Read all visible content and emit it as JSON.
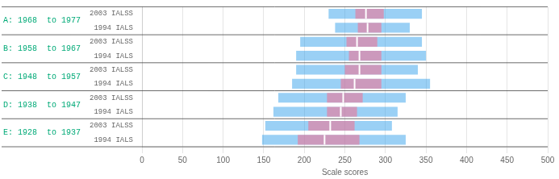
{
  "chart_data": {
    "type": "bar",
    "orientation": "horizontal",
    "xlabel": "Scale scores",
    "groups": [
      {
        "label": "A: 1968  to 1977",
        "color": "#00aa77"
      },
      {
        "label": "B: 1958  to 1967",
        "color": "#00aa77"
      },
      {
        "label": "C: 1948  to 1957",
        "color": "#00aa77"
      },
      {
        "label": "D: 1938  to 1947",
        "color": "#00aa77"
      },
      {
        "label": "E: 1928  to 1937",
        "color": "#00aa77"
      }
    ],
    "categories": [
      "2003 IALSS",
      "1994 IALS",
      "2003 IALSS",
      "1994 IALS",
      "2003 IALSS",
      "1994 IALS",
      "2003 IALSS",
      "1994 IALS",
      "2003 IALSS",
      "1994 IALS"
    ],
    "ci_low": [
      230,
      238,
      195,
      190,
      190,
      185,
      168,
      162,
      152,
      148
    ],
    "ci_high": [
      345,
      330,
      345,
      350,
      340,
      355,
      325,
      315,
      308,
      325
    ],
    "q1": [
      263,
      266,
      252,
      255,
      250,
      245,
      228,
      228,
      205,
      192
    ],
    "q3": [
      298,
      295,
      290,
      295,
      295,
      295,
      272,
      265,
      262,
      268
    ],
    "median": [
      276,
      278,
      265,
      268,
      268,
      262,
      248,
      245,
      232,
      225
    ],
    "xlim": [
      0,
      500
    ],
    "xticks": [
      0,
      50,
      100,
      150,
      200,
      250,
      300,
      350,
      400,
      450,
      500
    ],
    "grid": true
  }
}
